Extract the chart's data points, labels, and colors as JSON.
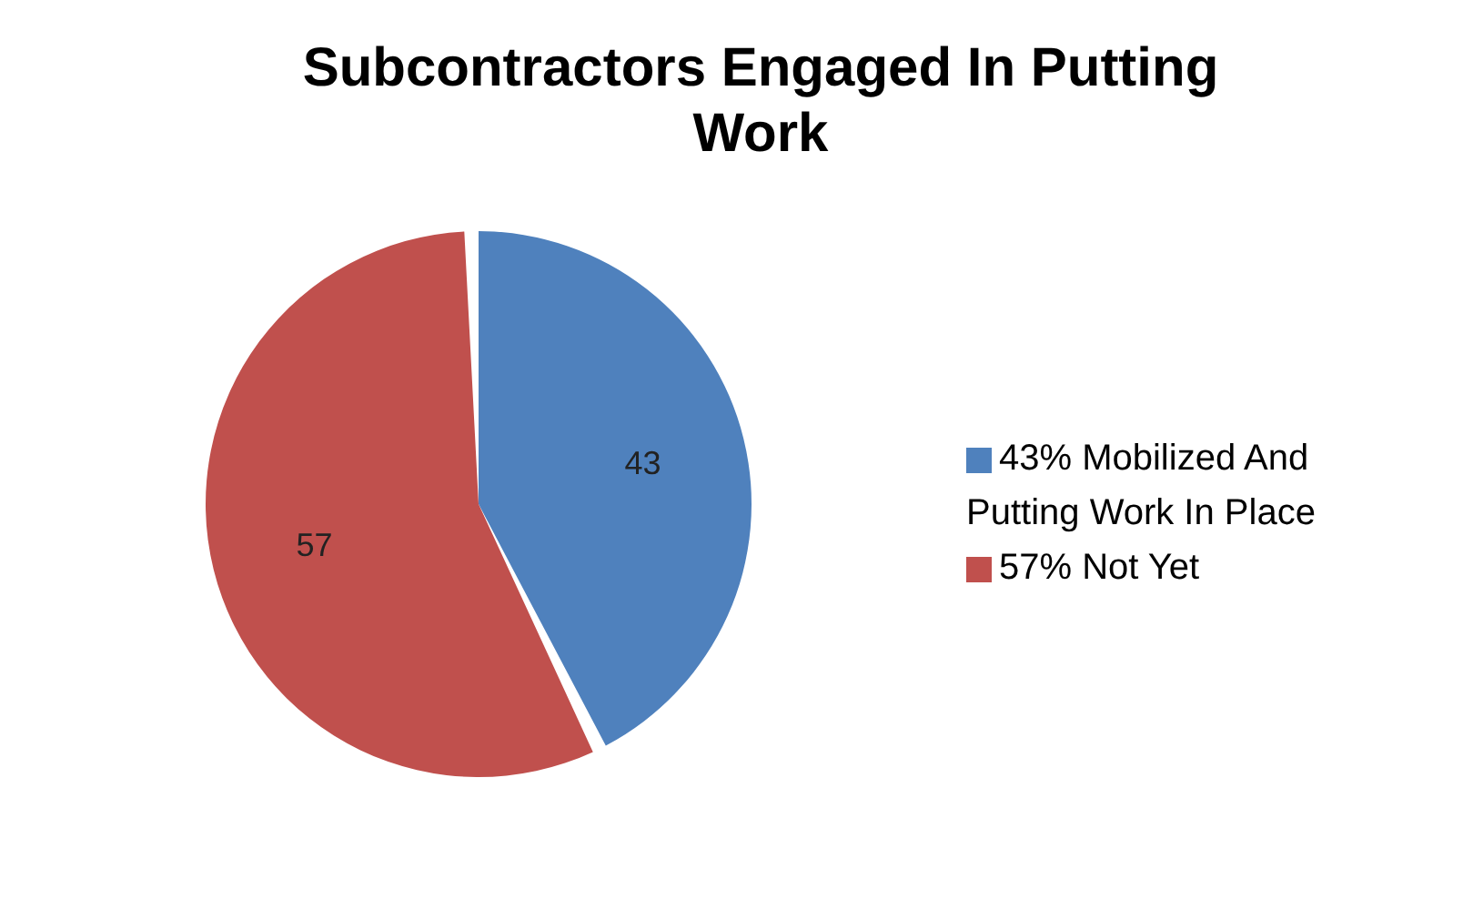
{
  "chart_data": {
    "type": "pie",
    "title": "Subcontractors Engaged In Putting Work",
    "categories": [
      "43% Mobilized And Putting Work In Place",
      "57% Not Yet"
    ],
    "values": [
      43,
      57
    ],
    "colors": [
      "#4f81bd",
      "#c0504d"
    ],
    "data_labels": true,
    "legend": "right"
  }
}
